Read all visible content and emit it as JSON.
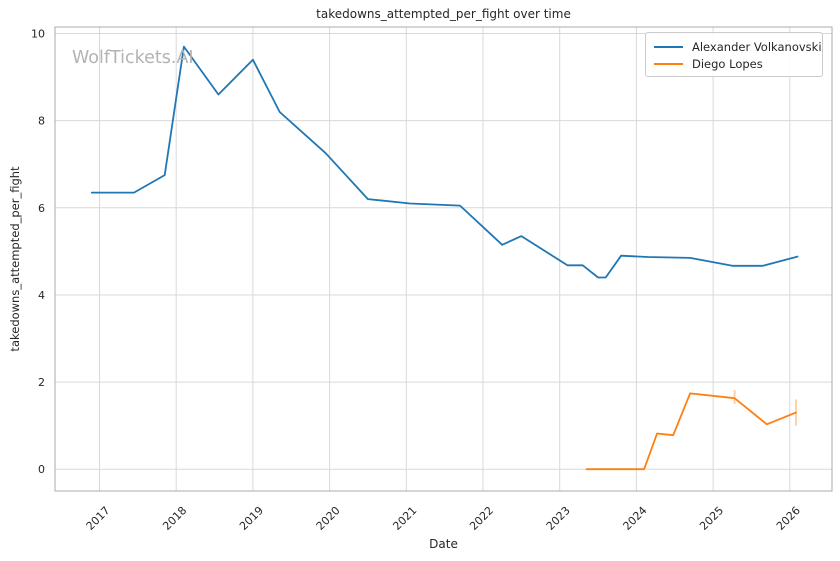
{
  "figure": {
    "title": "takedowns_attempted_per_fight over time",
    "watermark": "WolfTickets.AI",
    "xlabel": "Date",
    "ylabel": "takedowns_attempted_per_fight"
  },
  "legend": {
    "position": "upper right",
    "items": [
      {
        "label": "Alexander Volkanovski",
        "color": "#1f77b4"
      },
      {
        "label": "Diego Lopes",
        "color": "#ff7f0e"
      }
    ]
  },
  "colors": {
    "background": "#ffffff",
    "grid": "#d9d9d9",
    "spine": "#ababab",
    "text": "#262626",
    "watermark": "#b3b3b3"
  },
  "chart_data": {
    "type": "line",
    "title": "takedowns_attempted_per_fight over time",
    "xlabel": "Date",
    "ylabel": "takedowns_attempted_per_fight",
    "grid": true,
    "legend_position": "upper right",
    "xlim": [
      2016.42,
      2026.55
    ],
    "ylim": [
      -0.5,
      10.15
    ],
    "x_ticks": [
      2017,
      2018,
      2019,
      2020,
      2021,
      2022,
      2023,
      2024,
      2025,
      2026
    ],
    "y_ticks": [
      0,
      2,
      4,
      6,
      8,
      10
    ],
    "series": [
      {
        "name": "Alexander Volkanovski",
        "color": "#1f77b4",
        "points": [
          [
            2016.9,
            6.35
          ],
          [
            2017.45,
            6.35
          ],
          [
            2017.85,
            6.75
          ],
          [
            2018.1,
            9.7
          ],
          [
            2018.55,
            8.6
          ],
          [
            2019.0,
            9.4
          ],
          [
            2019.35,
            8.2
          ],
          [
            2019.95,
            7.25
          ],
          [
            2020.5,
            6.2
          ],
          [
            2021.05,
            6.1
          ],
          [
            2021.7,
            6.05
          ],
          [
            2022.25,
            5.15
          ],
          [
            2022.5,
            5.35
          ],
          [
            2023.1,
            4.68
          ],
          [
            2023.3,
            4.68
          ],
          [
            2023.5,
            4.4
          ],
          [
            2023.6,
            4.4
          ],
          [
            2023.8,
            4.9
          ],
          [
            2024.15,
            4.87
          ],
          [
            2024.7,
            4.85
          ],
          [
            2025.25,
            4.67
          ],
          [
            2025.65,
            4.67
          ],
          [
            2026.1,
            4.88
          ]
        ],
        "error_bars": []
      },
      {
        "name": "Diego Lopes",
        "color": "#ff7f0e",
        "points": [
          [
            2023.35,
            0.0
          ],
          [
            2024.1,
            0.0
          ],
          [
            2024.27,
            0.82
          ],
          [
            2024.48,
            0.78
          ],
          [
            2024.7,
            1.74
          ],
          [
            2025.28,
            1.63
          ],
          [
            2025.7,
            1.03
          ],
          [
            2026.08,
            1.3
          ]
        ],
        "error_bars": [
          {
            "x": 2025.28,
            "y_low": 1.5,
            "y_high": 1.82
          },
          {
            "x": 2026.08,
            "y_low": 1.0,
            "y_high": 1.6
          }
        ]
      }
    ]
  }
}
